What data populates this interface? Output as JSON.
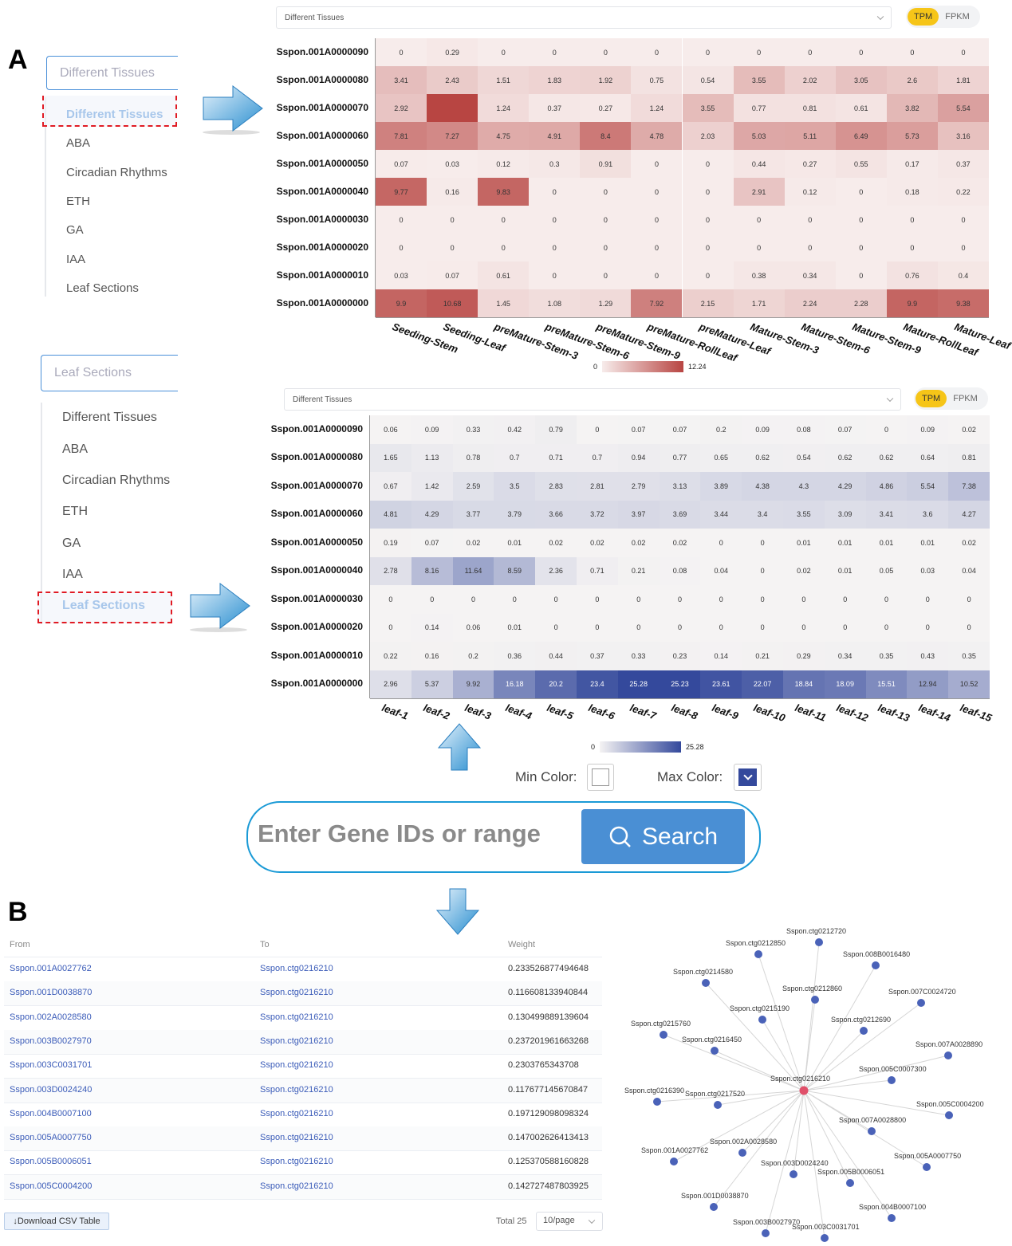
{
  "panel_labels": {
    "a": "A",
    "b": "B"
  },
  "panel1": {
    "select_placeholder": "Different Tissues",
    "options": [
      "Different Tissues",
      "ABA",
      "Circadian Rhythms",
      "ETH",
      "GA",
      "IAA",
      "Leaf Sections"
    ],
    "selected_index": 0
  },
  "panel2": {
    "select_placeholder": "Leaf Sections",
    "options": [
      "Different Tissues",
      "ABA",
      "Circadian Rhythms",
      "ETH",
      "GA",
      "IAA",
      "Leaf Sections"
    ],
    "selected_index": 6
  },
  "heatmap1_controls": {
    "dataset_select": "Different Tissues",
    "tpm": "TPM",
    "fpkm": "FPKM",
    "active_unit": "TPM"
  },
  "heatmap2_controls": {
    "dataset_select": "Different Tissues",
    "tpm": "TPM",
    "fpkm": "FPKM",
    "active_unit": "TPM"
  },
  "chart_data": [
    {
      "type": "heatmap",
      "rows": [
        "Sspon.001A0000090",
        "Sspon.001A0000080",
        "Sspon.001A0000070",
        "Sspon.001A0000060",
        "Sspon.001A0000050",
        "Sspon.001A0000040",
        "Sspon.001A0000030",
        "Sspon.001A0000020",
        "Sspon.001A0000010",
        "Sspon.001A0000000"
      ],
      "columns": [
        "Seeding-Stem",
        "Seeding-Leaf",
        "preMature-Stem-3",
        "preMature-Stem-6",
        "preMature-Stem-9",
        "preMature-RollLeaf",
        "preMature-Leaf",
        "Mature-Stem-3",
        "Mature-Stem-6",
        "Mature-Stem-9",
        "Mature-RollLeaf",
        "Mature-Leaf"
      ],
      "values": [
        [
          0,
          0.29,
          0,
          0,
          0,
          0,
          0,
          0,
          0,
          0,
          0,
          0
        ],
        [
          3.41,
          2.43,
          1.51,
          1.83,
          1.92,
          0.75,
          0.54,
          3.55,
          2.02,
          3.05,
          2.6,
          1.81
        ],
        [
          2.92,
          12.24,
          1.24,
          0.37,
          0.27,
          1.24,
          3.55,
          0.77,
          0.81,
          0.61,
          3.82,
          5.54
        ],
        [
          7.81,
          7.27,
          4.75,
          4.91,
          8.4,
          4.78,
          2.03,
          5.03,
          5.11,
          6.49,
          5.73,
          3.16
        ],
        [
          0.07,
          0.03,
          0.12,
          0.3,
          0.91,
          0,
          0,
          0.44,
          0.27,
          0.55,
          0.17,
          0.37
        ],
        [
          9.77,
          0.16,
          9.83,
          0,
          0,
          0,
          0,
          2.91,
          0.12,
          0,
          0.18,
          0.22
        ],
        [
          0,
          0,
          0,
          0,
          0,
          0,
          0,
          0,
          0,
          0,
          0,
          0
        ],
        [
          0,
          0,
          0,
          0,
          0,
          0,
          0,
          0,
          0,
          0,
          0,
          0
        ],
        [
          0.03,
          0.07,
          0.61,
          0,
          0,
          0,
          0,
          0.38,
          0.34,
          0,
          0.76,
          0.4
        ],
        [
          9.9,
          10.68,
          1.45,
          1.08,
          1.29,
          7.92,
          2.15,
          1.71,
          2.24,
          2.28,
          9.9,
          9.38
        ]
      ],
      "hidden_labels": [
        [
          2,
          1
        ]
      ],
      "scale": {
        "min": 0,
        "max": 12.24,
        "min_label": "0",
        "max_label": "12.24",
        "min_color": "#f7eceb",
        "max_color": "#b84542"
      }
    },
    {
      "type": "heatmap",
      "rows": [
        "Sspon.001A0000090",
        "Sspon.001A0000080",
        "Sspon.001A0000070",
        "Sspon.001A0000060",
        "Sspon.001A0000050",
        "Sspon.001A0000040",
        "Sspon.001A0000030",
        "Sspon.001A0000020",
        "Sspon.001A0000010",
        "Sspon.001A0000000"
      ],
      "columns": [
        "leaf-1",
        "leaf-2",
        "leaf-3",
        "leaf-4",
        "leaf-5",
        "leaf-6",
        "leaf-7",
        "leaf-8",
        "leaf-9",
        "leaf-10",
        "leaf-11",
        "leaf-12",
        "leaf-13",
        "leaf-14",
        "leaf-15"
      ],
      "values": [
        [
          0.06,
          0.09,
          0.33,
          0.42,
          0.79,
          0,
          0.07,
          0.07,
          0.2,
          0.09,
          0.08,
          0.07,
          0,
          0.09,
          0.02
        ],
        [
          1.65,
          1.13,
          0.78,
          0.7,
          0.71,
          0.7,
          0.94,
          0.77,
          0.65,
          0.62,
          0.54,
          0.62,
          0.62,
          0.64,
          0.81
        ],
        [
          0.67,
          1.42,
          2.59,
          3.5,
          2.83,
          2.81,
          2.79,
          3.13,
          3.89,
          4.38,
          4.3,
          4.29,
          4.86,
          5.54,
          7.38
        ],
        [
          4.81,
          4.29,
          3.77,
          3.79,
          3.66,
          3.72,
          3.97,
          3.69,
          3.44,
          3.4,
          3.55,
          3.09,
          3.41,
          3.6,
          4.27
        ],
        [
          0.19,
          0.07,
          0.02,
          0.01,
          0.02,
          0.02,
          0.02,
          0.02,
          0,
          0,
          0.01,
          0.01,
          0.01,
          0.01,
          0.02
        ],
        [
          2.78,
          8.16,
          11.64,
          8.59,
          2.36,
          0.71,
          0.21,
          0.08,
          0.04,
          0,
          0.02,
          0.01,
          0.05,
          0.03,
          0.04
        ],
        [
          0,
          0,
          0,
          0,
          0,
          0,
          0,
          0,
          0,
          0,
          0,
          0,
          0,
          0,
          0
        ],
        [
          0,
          0.14,
          0.06,
          0.01,
          0,
          0,
          0,
          0,
          0,
          0,
          0,
          0,
          0,
          0,
          0
        ],
        [
          0.22,
          0.16,
          0.2,
          0.36,
          0.44,
          0.37,
          0.33,
          0.23,
          0.14,
          0.21,
          0.29,
          0.34,
          0.35,
          0.43,
          0.35
        ],
        [
          2.96,
          5.37,
          9.92,
          16.18,
          20.2,
          23.4,
          25.28,
          25.23,
          23.61,
          22.07,
          18.84,
          18.09,
          15.51,
          12.94,
          10.52
        ]
      ],
      "scale": {
        "min": 0,
        "max": 25.28,
        "min_label": "0",
        "max_label": "25.28",
        "min_color": "#f5f3f3",
        "max_color": "#34499c"
      }
    }
  ],
  "color_pickers": {
    "min_label": "Min Color:",
    "max_label": "Max Color:",
    "min_color": "#ffffff",
    "max_color": "#34499c"
  },
  "search": {
    "placeholder": "Enter Gene IDs or range",
    "button": "Search",
    "icon": "search-icon"
  },
  "table": {
    "headers": [
      "From",
      "To",
      "Weight"
    ],
    "rows": [
      [
        "Sspon.001A0027762",
        "Sspon.ctg0216210",
        "0.233526877494648"
      ],
      [
        "Sspon.001D0038870",
        "Sspon.ctg0216210",
        "0.116608133940844"
      ],
      [
        "Sspon.002A0028580",
        "Sspon.ctg0216210",
        "0.130499889139604"
      ],
      [
        "Sspon.003B0027970",
        "Sspon.ctg0216210",
        "0.237201961663268"
      ],
      [
        "Sspon.003C0031701",
        "Sspon.ctg0216210",
        "0.2303765343708"
      ],
      [
        "Sspon.003D0024240",
        "Sspon.ctg0216210",
        "0.117677145670847"
      ],
      [
        "Sspon.004B0007100",
        "Sspon.ctg0216210",
        "0.197129098098324"
      ],
      [
        "Sspon.005A0007750",
        "Sspon.ctg0216210",
        "0.147002626413413"
      ],
      [
        "Sspon.005B0006051",
        "Sspon.ctg0216210",
        "0.125370588160828"
      ],
      [
        "Sspon.005C0004200",
        "Sspon.ctg0216210",
        "0.142727487803925"
      ]
    ],
    "download_button": "Download CSV Table",
    "total": "Total 25",
    "page_size": "10/page"
  },
  "network": {
    "center": "Sspon.ctg0216210",
    "center_color": "#e0506a",
    "node_color": "#4a62b8",
    "nodes": [
      "Sspon.ctg0212720",
      "Sspon.ctg0212850",
      "Sspon.008B0016480",
      "Sspon.ctg0214580",
      "Sspon.ctg0212860",
      "Sspon.007C0024720",
      "Sspon.ctg0215190",
      "Sspon.ctg0212690",
      "Sspon.ctg0215760",
      "Sspon.ctg0216450",
      "Sspon.007A0028890",
      "Sspon.005C0007300",
      "Sspon.ctg0216390",
      "Sspon.ctg0217520",
      "Sspon.005C0004200",
      "Sspon.007A0028800",
      "Sspon.002A0028580",
      "Sspon.001A0027762",
      "Sspon.005A0007750",
      "Sspon.003D0024240",
      "Sspon.005B0006051",
      "Sspon.001D0038870",
      "Sspon.004B0007100",
      "Sspon.003B0027970",
      "Sspon.003C0031701"
    ]
  }
}
